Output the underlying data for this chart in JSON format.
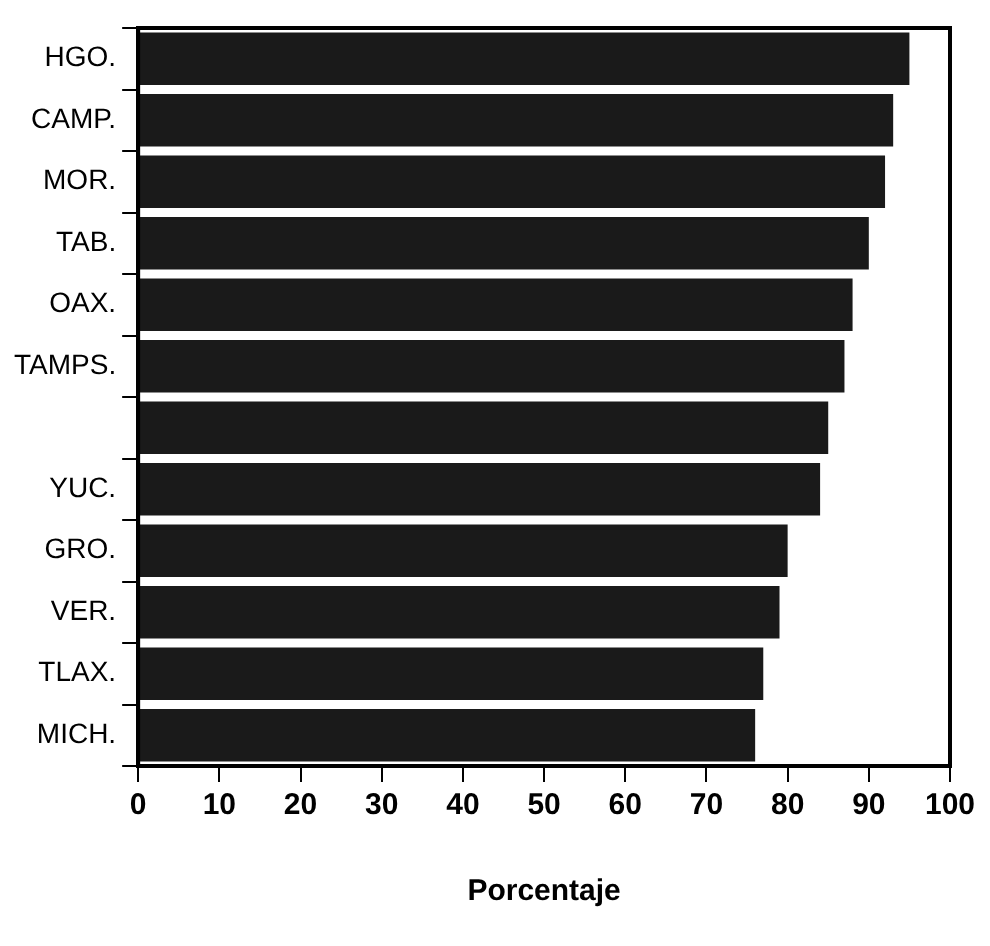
{
  "chart_data": {
    "type": "bar",
    "orientation": "horizontal",
    "xlabel": "Porcentaje",
    "categories": [
      "HGO.",
      "CAMP.",
      "MOR.",
      "TAB.",
      "OAX.",
      "TAMPS.",
      null,
      "YUC.",
      "GRO.",
      "VER.",
      "TLAX.",
      "MICH."
    ],
    "values": [
      95,
      93,
      92,
      90,
      88,
      87,
      85,
      84,
      80,
      79,
      77,
      76
    ],
    "color": "#1a1a1a",
    "xlim": [
      0,
      100
    ],
    "xticks": [
      0,
      10,
      20,
      30,
      40,
      50,
      60,
      70,
      80,
      90,
      100
    ],
    "grid": false,
    "legend": false
  }
}
